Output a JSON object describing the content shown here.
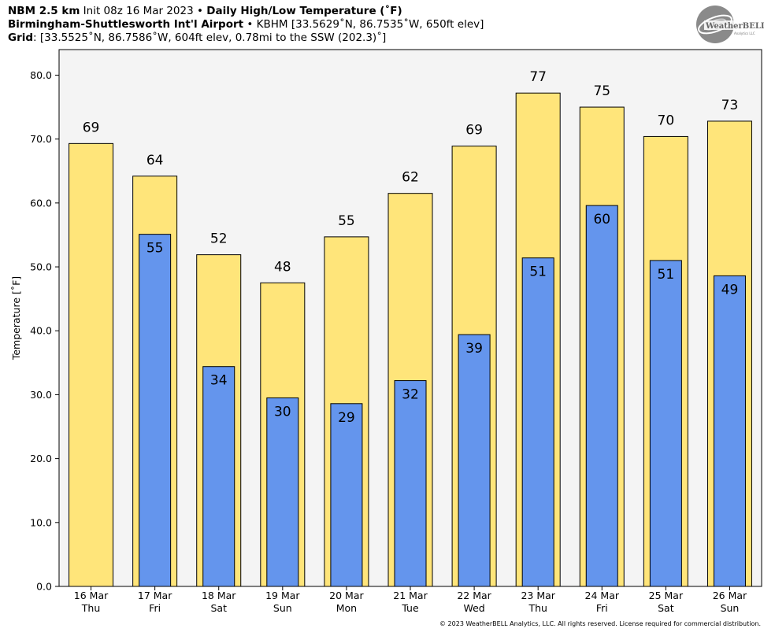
{
  "header": {
    "line1": {
      "bold1": "NBM 2.5 km",
      "normal1": " Init 08z 16 Mar 2023 • ",
      "bold2": "Daily High/Low Temperature (˚F)"
    },
    "line2": {
      "bold": "Birmingham-Shuttlesworth Int'l Airport",
      "normal": " • KBHM [33.5629˚N, 86.7535˚W, 650ft elev]"
    },
    "line3": {
      "bold": "Grid",
      "normal": ": [33.5525˚N, 86.7586˚W, 604ft elev, 0.78mi to the SSW (202.3)˚]"
    }
  },
  "logo": {
    "text_main": "WeatherBELL",
    "text_sub": "Analytics LLC"
  },
  "copyright": "© 2023 WeatherBELL Analytics, LLC. All rights reserved. License required for commercial distribution.",
  "colors": {
    "high": "#ffe57a",
    "low": "#6495ed",
    "plot_bg": "#f4f4f4"
  },
  "chart_data": {
    "type": "bar",
    "title": "Daily High/Low Temperature (˚F)",
    "ylabel": "Temperature [˚F]",
    "ylim": [
      0,
      84
    ],
    "yticks": [
      "0.0",
      "10.0",
      "20.0",
      "30.0",
      "40.0",
      "50.0",
      "60.0",
      "70.0",
      "80.0"
    ],
    "categories": [
      "16 Mar",
      "17 Mar",
      "18 Mar",
      "19 Mar",
      "20 Mar",
      "21 Mar",
      "22 Mar",
      "23 Mar",
      "24 Mar",
      "25 Mar",
      "26 Mar"
    ],
    "weekdays": [
      "Thu",
      "Fri",
      "Sat",
      "Sun",
      "Mon",
      "Tue",
      "Wed",
      "Thu",
      "Fri",
      "Sat",
      "Sun"
    ],
    "series": [
      {
        "key": "high",
        "values": [
          69.3,
          64.2,
          51.9,
          47.5,
          54.7,
          61.5,
          68.9,
          77.2,
          75.0,
          70.4,
          72.8
        ],
        "labels": [
          "69",
          "64",
          "52",
          "48",
          "55",
          "62",
          "69",
          "77",
          "75",
          "70",
          "73"
        ]
      },
      {
        "key": "low",
        "values": [
          null,
          55.1,
          34.4,
          29.5,
          28.6,
          32.2,
          39.4,
          51.4,
          59.6,
          51.0,
          48.6
        ],
        "labels": [
          "",
          "55",
          "34",
          "30",
          "29",
          "32",
          "39",
          "51",
          "60",
          "51",
          "49"
        ]
      }
    ],
    "legend": "none",
    "grid": false
  }
}
